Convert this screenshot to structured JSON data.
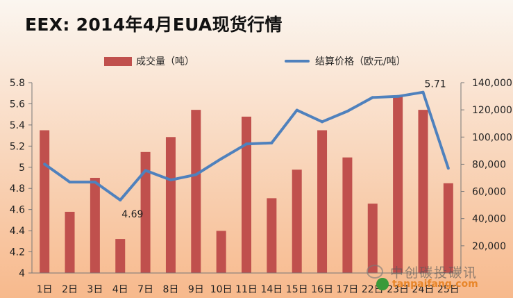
{
  "title": "EEX: 2014年4月EUA现货行情",
  "colors": {
    "bar": "#c0504d",
    "line": "#4f81bd",
    "bg_top": "#fbf6f0",
    "bg_bottom": "#f7b98c"
  },
  "legend": {
    "bar_label": "成交量（吨）",
    "line_label": "结算价格（欧元/吨）"
  },
  "watermark": {
    "text": "中创碳投碳讯",
    "site": "tanpaifang.com"
  },
  "chart_data": {
    "type": "bar",
    "categories": [
      "1日",
      "2日",
      "3日",
      "4日",
      "7日",
      "8日",
      "9日",
      "10日",
      "11日",
      "14日",
      "15日",
      "16日",
      "17日",
      "22日",
      "23日",
      "24日",
      "25日"
    ],
    "series": [
      {
        "name": "成交量（吨）",
        "type": "bar",
        "axis": "right",
        "values": [
          105000,
          45000,
          70000,
          25000,
          89000,
          100000,
          120000,
          31000,
          115000,
          55000,
          76000,
          105000,
          85000,
          51000,
          130000,
          120000,
          66000
        ]
      },
      {
        "name": "结算价格（欧元/吨）",
        "type": "line",
        "axis": "left",
        "values": [
          5.03,
          4.86,
          4.86,
          4.69,
          4.97,
          4.88,
          4.93,
          5.08,
          5.22,
          5.23,
          5.54,
          5.43,
          5.53,
          5.66,
          5.67,
          5.71,
          4.99
        ]
      }
    ],
    "y_left": {
      "min": 4,
      "max": 5.8,
      "ticks": [
        "4",
        "4.2",
        "4.4",
        "4.6",
        "4.8",
        "5",
        "5.2",
        "5.4",
        "5.6",
        "5.8"
      ]
    },
    "y_right": {
      "min": 0,
      "max": 140000,
      "ticks": [
        "20,000",
        "40,000",
        "60,000",
        "80,000",
        "100,000",
        "120,000",
        "140,000"
      ]
    },
    "annotations": [
      {
        "text": "4.69",
        "index": 3
      },
      {
        "text": "5.71",
        "index": 15
      }
    ],
    "legend_position": "top",
    "grid": false
  }
}
